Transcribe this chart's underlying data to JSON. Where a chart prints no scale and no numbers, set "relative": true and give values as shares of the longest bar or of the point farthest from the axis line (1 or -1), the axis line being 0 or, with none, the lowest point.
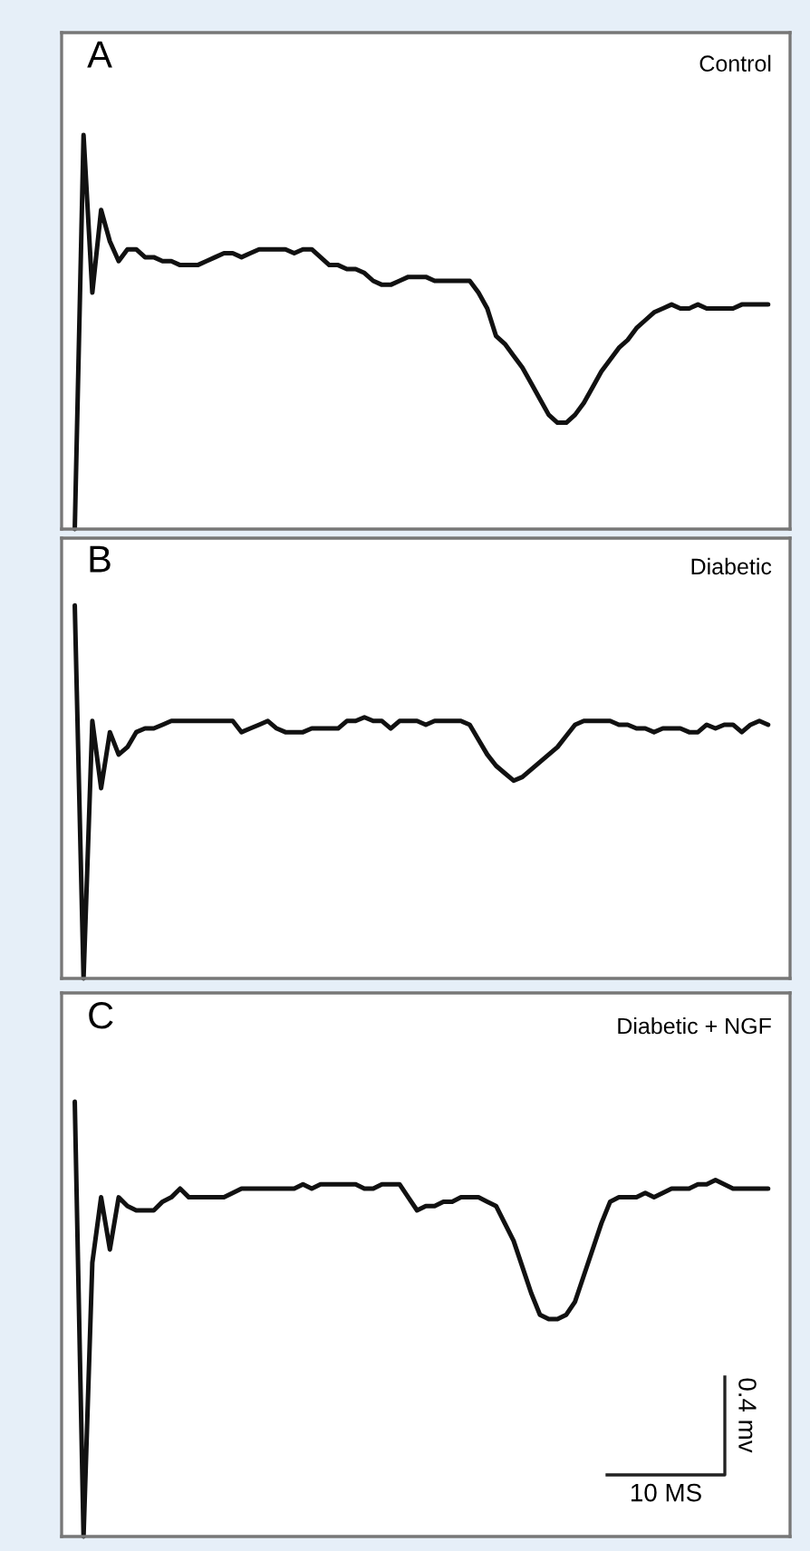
{
  "chart_data": [
    {
      "type": "line",
      "relative": true,
      "annotations": [
        "A",
        "Control"
      ],
      "categories": [
        null,
        null,
        null,
        null,
        null,
        null,
        null,
        null,
        null,
        null,
        null,
        null,
        null,
        null,
        null,
        null,
        null,
        null,
        null,
        null,
        null,
        null,
        null,
        null,
        null,
        null,
        null,
        null,
        null,
        null,
        null,
        null,
        null,
        null,
        null,
        null,
        null,
        null,
        null,
        null,
        null,
        null,
        null,
        null,
        null,
        null,
        null,
        null,
        null,
        null,
        null,
        null,
        null,
        null,
        null,
        null,
        null,
        null,
        null,
        null,
        null,
        null,
        null,
        null,
        null,
        null,
        null,
        null,
        null,
        null,
        null,
        null,
        null,
        null,
        null,
        null,
        null,
        null,
        null,
        null
      ],
      "series": [
        {
          "color": "#111111",
          "values": [
            0,
            1,
            0.6,
            0.81,
            0.73,
            0.68,
            0.71,
            0.71,
            0.69,
            0.69,
            0.68,
            0.68,
            0.67,
            0.67,
            0.67,
            0.68,
            0.69,
            0.7,
            0.7,
            0.69,
            0.7,
            0.71,
            0.71,
            0.71,
            0.71,
            0.7,
            0.71,
            0.71,
            0.69,
            0.67,
            0.67,
            0.66,
            0.66,
            0.65,
            0.63,
            0.62,
            0.62,
            0.63,
            0.64,
            0.64,
            0.64,
            0.63,
            0.63,
            0.63,
            0.63,
            0.63,
            0.6,
            0.56,
            0.49,
            0.47,
            0.44,
            0.41,
            0.37,
            0.33,
            0.29,
            0.27,
            0.27,
            0.29,
            0.32,
            0.36,
            0.4,
            0.43,
            0.46,
            0.48,
            0.51,
            0.53,
            0.55,
            0.56,
            0.57,
            0.56,
            0.56,
            0.57,
            0.56,
            0.56,
            0.56,
            0.56,
            0.57,
            0.57,
            0.57,
            0.57
          ]
        }
      ]
    },
    {
      "type": "line",
      "relative": true,
      "annotations": [
        "B",
        "Diabetic"
      ],
      "categories": [
        null,
        null,
        null,
        null,
        null,
        null,
        null,
        null,
        null,
        null,
        null,
        null,
        null,
        null,
        null,
        null,
        null,
        null,
        null,
        null,
        null,
        null,
        null,
        null,
        null,
        null,
        null,
        null,
        null,
        null,
        null,
        null,
        null,
        null,
        null,
        null,
        null,
        null,
        null,
        null,
        null,
        null,
        null,
        null,
        null,
        null,
        null,
        null,
        null,
        null,
        null,
        null,
        null,
        null,
        null,
        null,
        null,
        null,
        null,
        null,
        null,
        null,
        null,
        null,
        null,
        null,
        null,
        null,
        null,
        null,
        null,
        null,
        null,
        null,
        null,
        null,
        null,
        null,
        null,
        null
      ],
      "series": [
        {
          "color": "#111111",
          "values": [
            1,
            0,
            0.69,
            0.51,
            0.66,
            0.6,
            0.62,
            0.66,
            0.67,
            0.67,
            0.68,
            0.69,
            0.69,
            0.69,
            0.69,
            0.69,
            0.69,
            0.69,
            0.69,
            0.66,
            0.67,
            0.68,
            0.69,
            0.67,
            0.66,
            0.66,
            0.66,
            0.67,
            0.67,
            0.67,
            0.67,
            0.69,
            0.69,
            0.7,
            0.69,
            0.69,
            0.67,
            0.69,
            0.69,
            0.69,
            0.68,
            0.69,
            0.69,
            0.69,
            0.69,
            0.68,
            0.64,
            0.6,
            0.57,
            0.55,
            0.53,
            0.54,
            0.56,
            0.58,
            0.6,
            0.62,
            0.65,
            0.68,
            0.69,
            0.69,
            0.69,
            0.69,
            0.68,
            0.68,
            0.67,
            0.67,
            0.66,
            0.67,
            0.67,
            0.67,
            0.66,
            0.66,
            0.68,
            0.67,
            0.68,
            0.68,
            0.66,
            0.68,
            0.69,
            0.68
          ]
        }
      ]
    },
    {
      "type": "line",
      "relative": true,
      "annotations": [
        "C",
        "Diabetic + NGF",
        "0.4 mv",
        "10 MS"
      ],
      "categories": [
        null,
        null,
        null,
        null,
        null,
        null,
        null,
        null,
        null,
        null,
        null,
        null,
        null,
        null,
        null,
        null,
        null,
        null,
        null,
        null,
        null,
        null,
        null,
        null,
        null,
        null,
        null,
        null,
        null,
        null,
        null,
        null,
        null,
        null,
        null,
        null,
        null,
        null,
        null,
        null,
        null,
        null,
        null,
        null,
        null,
        null,
        null,
        null,
        null,
        null,
        null,
        null,
        null,
        null,
        null,
        null,
        null,
        null,
        null,
        null,
        null,
        null,
        null,
        null,
        null,
        null,
        null,
        null,
        null,
        null,
        null,
        null,
        null,
        null,
        null,
        null,
        null,
        null,
        null,
        null
      ],
      "series": [
        {
          "color": "#111111",
          "values": [
            1,
            0,
            0.63,
            0.78,
            0.66,
            0.78,
            0.76,
            0.75,
            0.75,
            0.75,
            0.77,
            0.78,
            0.8,
            0.78,
            0.78,
            0.78,
            0.78,
            0.78,
            0.79,
            0.8,
            0.8,
            0.8,
            0.8,
            0.8,
            0.8,
            0.8,
            0.81,
            0.8,
            0.81,
            0.81,
            0.81,
            0.81,
            0.81,
            0.8,
            0.8,
            0.81,
            0.81,
            0.81,
            0.78,
            0.75,
            0.76,
            0.76,
            0.77,
            0.77,
            0.78,
            0.78,
            0.78,
            0.77,
            0.76,
            0.72,
            0.68,
            0.62,
            0.56,
            0.51,
            0.5,
            0.5,
            0.51,
            0.54,
            0.6,
            0.66,
            0.72,
            0.77,
            0.78,
            0.78,
            0.78,
            0.79,
            0.78,
            0.79,
            0.8,
            0.8,
            0.8,
            0.81,
            0.81,
            0.82,
            0.81,
            0.8,
            0.8,
            0.8,
            0.8,
            0.8
          ]
        }
      ]
    }
  ]
}
